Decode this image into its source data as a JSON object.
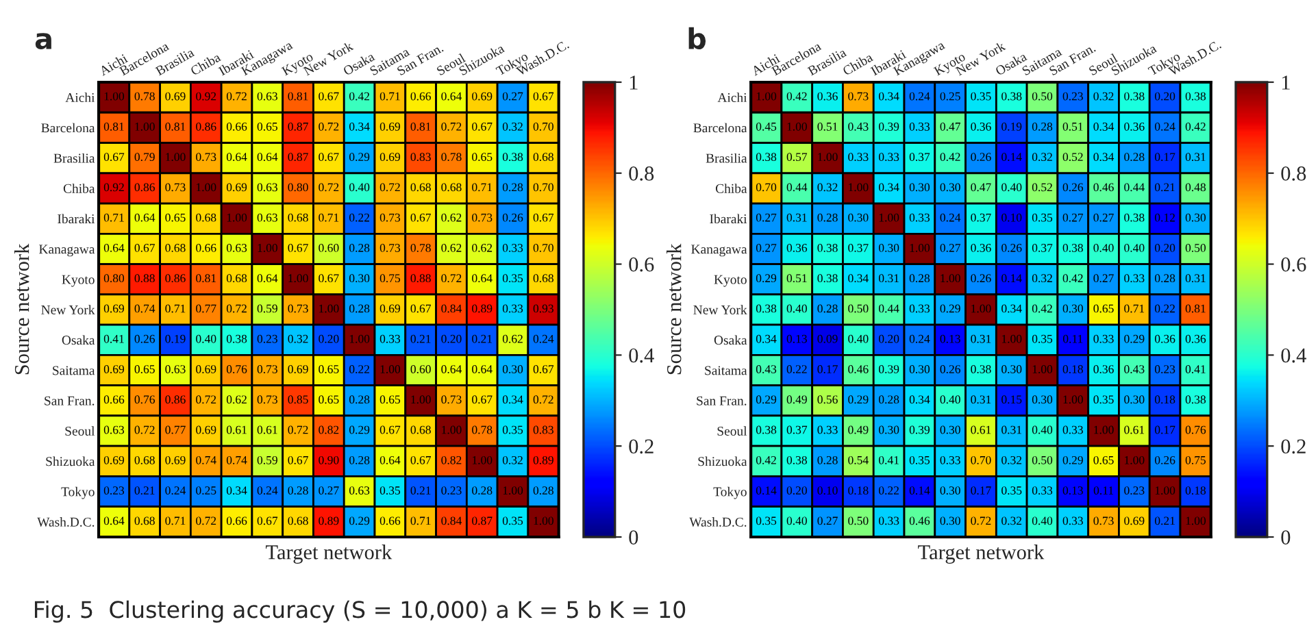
{
  "chart_data": [
    {
      "type": "heatmap",
      "title": "a",
      "xlabel": "Target network",
      "ylabel": "Source network",
      "categories": [
        "Aichi",
        "Barcelona",
        "Brasilia",
        "Chiba",
        "Ibaraki",
        "Kanagawa",
        "Kyoto",
        "New York",
        "Osaka",
        "Saitama",
        "San Fran.",
        "Seoul",
        "Shizuoka",
        "Tokyo",
        "Wash.D.C."
      ],
      "y_categories": [
        "Aichi",
        "Barcelona",
        "Brasilia",
        "Chiba",
        "Ibaraki",
        "Kanagawa",
        "Kyoto",
        "New York",
        "Osaka",
        "Saitama",
        "San Fran.",
        "Seoul",
        "Shizuoka",
        "Tokyo",
        "Wash.D.C."
      ],
      "cells": [
        [
          1.0,
          0.78,
          0.69,
          0.92,
          0.72,
          0.63,
          0.81,
          0.67,
          0.42,
          0.71,
          0.66,
          0.64,
          0.69,
          0.27,
          0.67
        ],
        [
          0.81,
          1.0,
          0.81,
          0.86,
          0.66,
          0.65,
          0.87,
          0.72,
          0.34,
          0.69,
          0.81,
          0.72,
          0.67,
          0.32,
          0.7
        ],
        [
          0.67,
          0.79,
          1.0,
          0.73,
          0.64,
          0.64,
          0.87,
          0.67,
          0.29,
          0.69,
          0.83,
          0.78,
          0.65,
          0.38,
          0.68
        ],
        [
          0.92,
          0.86,
          0.73,
          1.0,
          0.69,
          0.63,
          0.8,
          0.72,
          0.4,
          0.72,
          0.68,
          0.68,
          0.71,
          0.28,
          0.7
        ],
        [
          0.71,
          0.64,
          0.65,
          0.68,
          1.0,
          0.63,
          0.68,
          0.71,
          0.22,
          0.73,
          0.67,
          0.62,
          0.73,
          0.26,
          0.67
        ],
        [
          0.64,
          0.67,
          0.68,
          0.66,
          0.63,
          1.0,
          0.67,
          0.6,
          0.28,
          0.73,
          0.78,
          0.62,
          0.62,
          0.33,
          0.7
        ],
        [
          0.8,
          0.88,
          0.86,
          0.81,
          0.68,
          0.64,
          1.0,
          0.67,
          0.3,
          0.75,
          0.88,
          0.72,
          0.64,
          0.35,
          0.68
        ],
        [
          0.69,
          0.74,
          0.71,
          0.77,
          0.72,
          0.59,
          0.73,
          1.0,
          0.28,
          0.69,
          0.67,
          0.84,
          0.89,
          0.33,
          0.93
        ],
        [
          0.41,
          0.26,
          0.19,
          0.4,
          0.38,
          0.23,
          0.32,
          0.2,
          1.0,
          0.33,
          0.21,
          0.2,
          0.21,
          0.62,
          0.24
        ],
        [
          0.69,
          0.65,
          0.63,
          0.69,
          0.76,
          0.73,
          0.69,
          0.65,
          0.22,
          1.0,
          0.6,
          0.64,
          0.64,
          0.3,
          0.67
        ],
        [
          0.66,
          0.76,
          0.86,
          0.72,
          0.62,
          0.73,
          0.85,
          0.65,
          0.28,
          0.65,
          1.0,
          0.73,
          0.67,
          0.34,
          0.72
        ],
        [
          0.63,
          0.72,
          0.77,
          0.69,
          0.61,
          0.61,
          0.72,
          0.82,
          0.29,
          0.67,
          0.68,
          1.0,
          0.78,
          0.35,
          0.83
        ],
        [
          0.69,
          0.68,
          0.69,
          0.74,
          0.74,
          0.59,
          0.67,
          0.9,
          0.28,
          0.64,
          0.67,
          0.82,
          1.0,
          0.32,
          0.89
        ],
        [
          0.23,
          0.21,
          0.24,
          0.25,
          0.34,
          0.24,
          0.28,
          0.27,
          0.63,
          0.35,
          0.21,
          0.23,
          0.28,
          1.0,
          0.28
        ],
        [
          0.64,
          0.68,
          0.71,
          0.72,
          0.66,
          0.67,
          0.68,
          0.89,
          0.29,
          0.66,
          0.71,
          0.84,
          0.87,
          0.35,
          1.0
        ]
      ],
      "cell_labels": [
        [
          "1.00",
          "0.78",
          "0.69",
          "0.92",
          "0.72",
          "0.63",
          "0.81",
          "0.67",
          "0.42",
          "0.71",
          "0.66",
          "0.64",
          "0.69",
          "0.27",
          "0.67"
        ],
        [
          "0.81",
          "1.00",
          "0.81",
          "0.86",
          "0.66",
          "0.65",
          "0.87",
          "0.72",
          "0.34",
          "0.69",
          "0.81",
          "0.72",
          "0.67",
          "0.32",
          "0.70"
        ],
        [
          "0.67",
          "0.79",
          "1.00",
          "0.73",
          "0.64",
          "0.64",
          "0.87",
          "0.67",
          "0.29",
          "0.69",
          "0.83",
          "0.78",
          "0.65",
          "0.38",
          "0.68"
        ],
        [
          "0.92",
          "0.86",
          "0.73",
          "1.00",
          "0.69",
          "0.63",
          "0.80",
          "0.72",
          "0.40",
          "0.72",
          "0.68",
          "0.68",
          "0.71",
          "0.28",
          "0.70"
        ],
        [
          "0.71",
          "0.64",
          "0.65",
          "0.68",
          "1.00",
          "0.63",
          "0.68",
          "0.71",
          "0.22",
          "0.73",
          "0.67",
          "0.62",
          "0.73",
          "0.26",
          "0.67"
        ],
        [
          "0.64",
          "0.67",
          "0.68",
          "0.66",
          "0.63",
          "1.00",
          "0.67",
          "0.60",
          "0.28",
          "0.73",
          "0.78",
          "0.62",
          "0.62",
          "0.33",
          "0.70"
        ],
        [
          "0.80",
          "0.88",
          "0.86",
          "0.81",
          "0.68",
          "0.64",
          "1.00",
          "0.67",
          "0.30",
          "0.75",
          "0.88",
          "0.72",
          "0.64",
          "0.35",
          "0.68"
        ],
        [
          "0.69",
          "0.74",
          "0.71",
          "0.77",
          "0.72",
          "0.59",
          "0.73",
          "1.00",
          "0.28",
          "0.69",
          "0.67",
          "0.84",
          "0.89",
          "0.33",
          "0.93"
        ],
        [
          "0.41",
          "0.26",
          "0.19",
          "0.40",
          "0.38",
          "0.23",
          "0.32",
          "0.20",
          "1.00",
          "0.33",
          "0.21",
          "0.20",
          "0.21",
          "0.62",
          "0.24"
        ],
        [
          "0.69",
          "0.65",
          "0.63",
          "0.69",
          "0.76",
          "0.73",
          "0.69",
          "0.65",
          "0.22",
          "1.00",
          "0.60",
          "0.64",
          "0.64",
          "0.30",
          "0.67"
        ],
        [
          "0.66",
          "0.76",
          "0.86",
          "0.72",
          "0.62",
          "0.73",
          "0.85",
          "0.65",
          "0.28",
          "0.65",
          "1.00",
          "0.73",
          "0.67",
          "0.34",
          "0.72"
        ],
        [
          "0.63",
          "0.72",
          "0.77",
          "0.69",
          "0.61",
          "0.61",
          "0.72",
          "0.82",
          "0.29",
          "0.67",
          "0.68",
          "1.00",
          "0.78",
          "0.35",
          "0.83"
        ],
        [
          "0.69",
          "0.68",
          "0.69",
          "0.74",
          "0.74",
          "0.59",
          "0.67",
          "0.90",
          "0.28",
          "0.64",
          "0.67",
          "0.82",
          "1.00",
          "0.32",
          "0.89"
        ],
        [
          "0.23",
          "0.21",
          "0.24",
          "0.25",
          "0.34",
          "0.24",
          "0.28",
          "0.27",
          "0.63",
          "0.35",
          "0.21",
          "0.23",
          "0.28",
          "1.00",
          "0.28"
        ],
        [
          "0.64",
          "0.68",
          "0.71",
          "0.72",
          "0.66",
          "0.67",
          "0.68",
          "0.89",
          "0.29",
          "0.66",
          "0.71",
          "0.84",
          "0.87",
          "0.35",
          "1.00"
        ]
      ],
      "clim": [
        0,
        1
      ],
      "cticks": [
        0,
        0.2,
        0.4,
        0.6,
        0.8,
        1
      ],
      "annotations": [
        "Fig. 5  Clustering accuracy (S = 10,000) a K = 5 b K = 10"
      ]
    },
    {
      "type": "heatmap",
      "title": "b",
      "xlabel": "Target network",
      "ylabel": "Source network",
      "categories": [
        "Aichi",
        "Barcelona",
        "Brasilia",
        "Chiba",
        "Ibaraki",
        "Kanagawa",
        "Kyoto",
        "New York",
        "Osaka",
        "Saitama",
        "San Fran.",
        "Seoul",
        "Shizuoka",
        "Tokyo",
        "Wash.D.C."
      ],
      "y_categories": [
        "Aichi",
        "Barcelona",
        "Brasilia",
        "Chiba",
        "Ibaraki",
        "Kanagawa",
        "Kyoto",
        "New York",
        "Osaka",
        "Saitama",
        "San Fran.",
        "Seoul",
        "Shizuoka",
        "Tokyo",
        "Wash.D.C."
      ],
      "cells": [
        [
          1.0,
          0.42,
          0.36,
          0.73,
          0.34,
          0.24,
          0.25,
          0.35,
          0.38,
          0.5,
          0.23,
          0.32,
          0.38,
          0.2,
          0.38
        ],
        [
          0.45,
          1.0,
          0.51,
          0.43,
          0.39,
          0.33,
          0.47,
          0.36,
          0.19,
          0.28,
          0.51,
          0.34,
          0.36,
          0.24,
          0.42
        ],
        [
          0.38,
          0.57,
          1.0,
          0.33,
          0.33,
          0.37,
          0.42,
          0.26,
          0.14,
          0.32,
          0.52,
          0.34,
          0.28,
          0.17,
          0.31
        ],
        [
          0.7,
          0.44,
          0.32,
          1.0,
          0.34,
          0.3,
          0.3,
          0.47,
          0.4,
          0.52,
          0.26,
          0.46,
          0.44,
          0.21,
          0.48
        ],
        [
          0.27,
          0.31,
          0.28,
          0.3,
          1.0,
          0.33,
          0.24,
          0.37,
          0.1,
          0.35,
          0.27,
          0.27,
          0.38,
          0.12,
          0.3
        ],
        [
          0.27,
          0.36,
          0.38,
          0.37,
          0.3,
          1.0,
          0.27,
          0.36,
          0.26,
          0.37,
          0.38,
          0.4,
          0.4,
          0.2,
          0.5
        ],
        [
          0.29,
          0.51,
          0.38,
          0.34,
          0.31,
          0.28,
          1.0,
          0.26,
          0.14,
          0.32,
          0.42,
          0.27,
          0.33,
          0.28,
          0.31
        ],
        [
          0.38,
          0.4,
          0.28,
          0.5,
          0.44,
          0.33,
          0.29,
          1.0,
          0.34,
          0.42,
          0.3,
          0.65,
          0.71,
          0.22,
          0.81
        ],
        [
          0.34,
          0.13,
          0.09,
          0.4,
          0.2,
          0.24,
          0.13,
          0.31,
          1.0,
          0.35,
          0.11,
          0.33,
          0.29,
          0.36,
          0.36
        ],
        [
          0.43,
          0.22,
          0.17,
          0.46,
          0.39,
          0.3,
          0.26,
          0.38,
          0.3,
          1.0,
          0.18,
          0.36,
          0.43,
          0.23,
          0.41
        ],
        [
          0.29,
          0.49,
          0.56,
          0.29,
          0.28,
          0.34,
          0.4,
          0.31,
          0.15,
          0.3,
          1.0,
          0.35,
          0.3,
          0.18,
          0.38
        ],
        [
          0.38,
          0.37,
          0.33,
          0.49,
          0.3,
          0.39,
          0.3,
          0.61,
          0.31,
          0.4,
          0.33,
          1.0,
          0.61,
          0.17,
          0.76
        ],
        [
          0.42,
          0.38,
          0.28,
          0.54,
          0.41,
          0.35,
          0.33,
          0.7,
          0.32,
          0.5,
          0.29,
          0.65,
          1.0,
          0.26,
          0.75
        ],
        [
          0.14,
          0.2,
          0.1,
          0.18,
          0.22,
          0.14,
          0.3,
          0.17,
          0.35,
          0.33,
          0.13,
          0.11,
          0.23,
          1.0,
          0.18
        ],
        [
          0.35,
          0.4,
          0.27,
          0.5,
          0.33,
          0.46,
          0.3,
          0.72,
          0.32,
          0.4,
          0.33,
          0.73,
          0.69,
          0.21,
          1.0
        ]
      ],
      "cell_labels": [
        [
          "1.00",
          "0.42",
          "0.36",
          "0.73",
          "0.34",
          "0.24",
          "0.25",
          "0.35",
          "0.38",
          "0.50",
          "0.23",
          "0.32",
          "0.38",
          "0.20",
          "0.38"
        ],
        [
          "0.45",
          "1.00",
          "0.51",
          "0.43",
          "0.39",
          "0.33",
          "0.47",
          "0.36",
          "0.19",
          "0.28",
          "0.51",
          "0.34",
          "0.36",
          "0.24",
          "0.42"
        ],
        [
          "0.38",
          "0.57",
          "1.00",
          "0.33",
          "0.33",
          "0.37",
          "0.42",
          "0.26",
          "0.14",
          "0.32",
          "0.52",
          "0.34",
          "0.28",
          "0.17",
          "0.31"
        ],
        [
          "0.70",
          "0.44",
          "0.32",
          "1.00",
          "0.34",
          "0.30",
          "0.30",
          "0.47",
          "0.40",
          "0.52",
          "0.26",
          "0.46",
          "0.44",
          "0.21",
          "0.48"
        ],
        [
          "0.27",
          "0.31",
          "0.28",
          "0.30",
          "1.00",
          "0.33",
          "0.24",
          "0.37",
          "0.10",
          "0.35",
          "0.27",
          "0.27",
          "0.38",
          "0.12",
          "0.30"
        ],
        [
          "0.27",
          "0.36",
          "0.38",
          "0.37",
          "0.30",
          "1.00",
          "0.27",
          "0.36",
          "0.26",
          "0.37",
          "0.38",
          "0.40",
          "0.40",
          "0.20",
          "0.50"
        ],
        [
          "0.29",
          "0.51",
          "0.38",
          "0.34",
          "0.31",
          "0.28",
          "1.00",
          "0.26",
          "0.14",
          "0.32",
          "0.42",
          "0.27",
          "0.33",
          "0.28",
          "0.31"
        ],
        [
          "0.38",
          "0.40",
          "0.28",
          "0.50",
          "0.44",
          "0.33",
          "0.29",
          "1.00",
          "0.34",
          "0.42",
          "0.30",
          "0.65",
          "0.71",
          "0.22",
          "0.81"
        ],
        [
          "0.34",
          "0.13",
          "0.09",
          "0.40",
          "0.20",
          "0.24",
          "0.13",
          "0.31",
          "1.00",
          "0.35",
          "0.11",
          "0.33",
          "0.29",
          "0.36",
          "0.36"
        ],
        [
          "0.43",
          "0.22",
          "0.17",
          "0.46",
          "0.39",
          "0.30",
          "0.26",
          "0.38",
          "0.30",
          "1.00",
          "0.18",
          "0.36",
          "0.43",
          "0.23",
          "0.41"
        ],
        [
          "0.29",
          "0.49",
          "0.56",
          "0.29",
          "0.28",
          "0.34",
          "0.40",
          "0.31",
          "0.15",
          "0.30",
          "1.00",
          "0.35",
          "0.30",
          "0.18",
          "0.38"
        ],
        [
          "0.38",
          "0.37",
          "0.33",
          "0.49",
          "0.30",
          "0.39",
          "0.30",
          "0.61",
          "0.31",
          "0.40",
          "0.33",
          "1.00",
          "0.61",
          "0.17",
          "0.76"
        ],
        [
          "0.42",
          "0.38",
          "0.28",
          "0.54",
          "0.41",
          "0.35",
          "0.33",
          "0.70",
          "0.32",
          "0.50",
          "0.29",
          "0.65",
          "1.00",
          "0.26",
          "0.75"
        ],
        [
          "0.14",
          "0.20",
          "0.10",
          "0.18",
          "0.22",
          "0.14",
          "0.30",
          "0.17",
          "0.35",
          "0.33",
          "0.13",
          "0.11",
          "0.23",
          "1.00",
          "0.18"
        ],
        [
          "0.35",
          "0.40",
          "0.27",
          "0.50",
          "0.33",
          "0.46",
          "0.30",
          "0.72",
          "0.32",
          "0.40",
          "0.33",
          "0.73",
          "0.69",
          "0.21",
          "1.00"
        ]
      ],
      "clim": [
        0,
        1
      ],
      "cticks": [
        0,
        0.2,
        0.4,
        0.6,
        0.8,
        1
      ]
    }
  ]
}
